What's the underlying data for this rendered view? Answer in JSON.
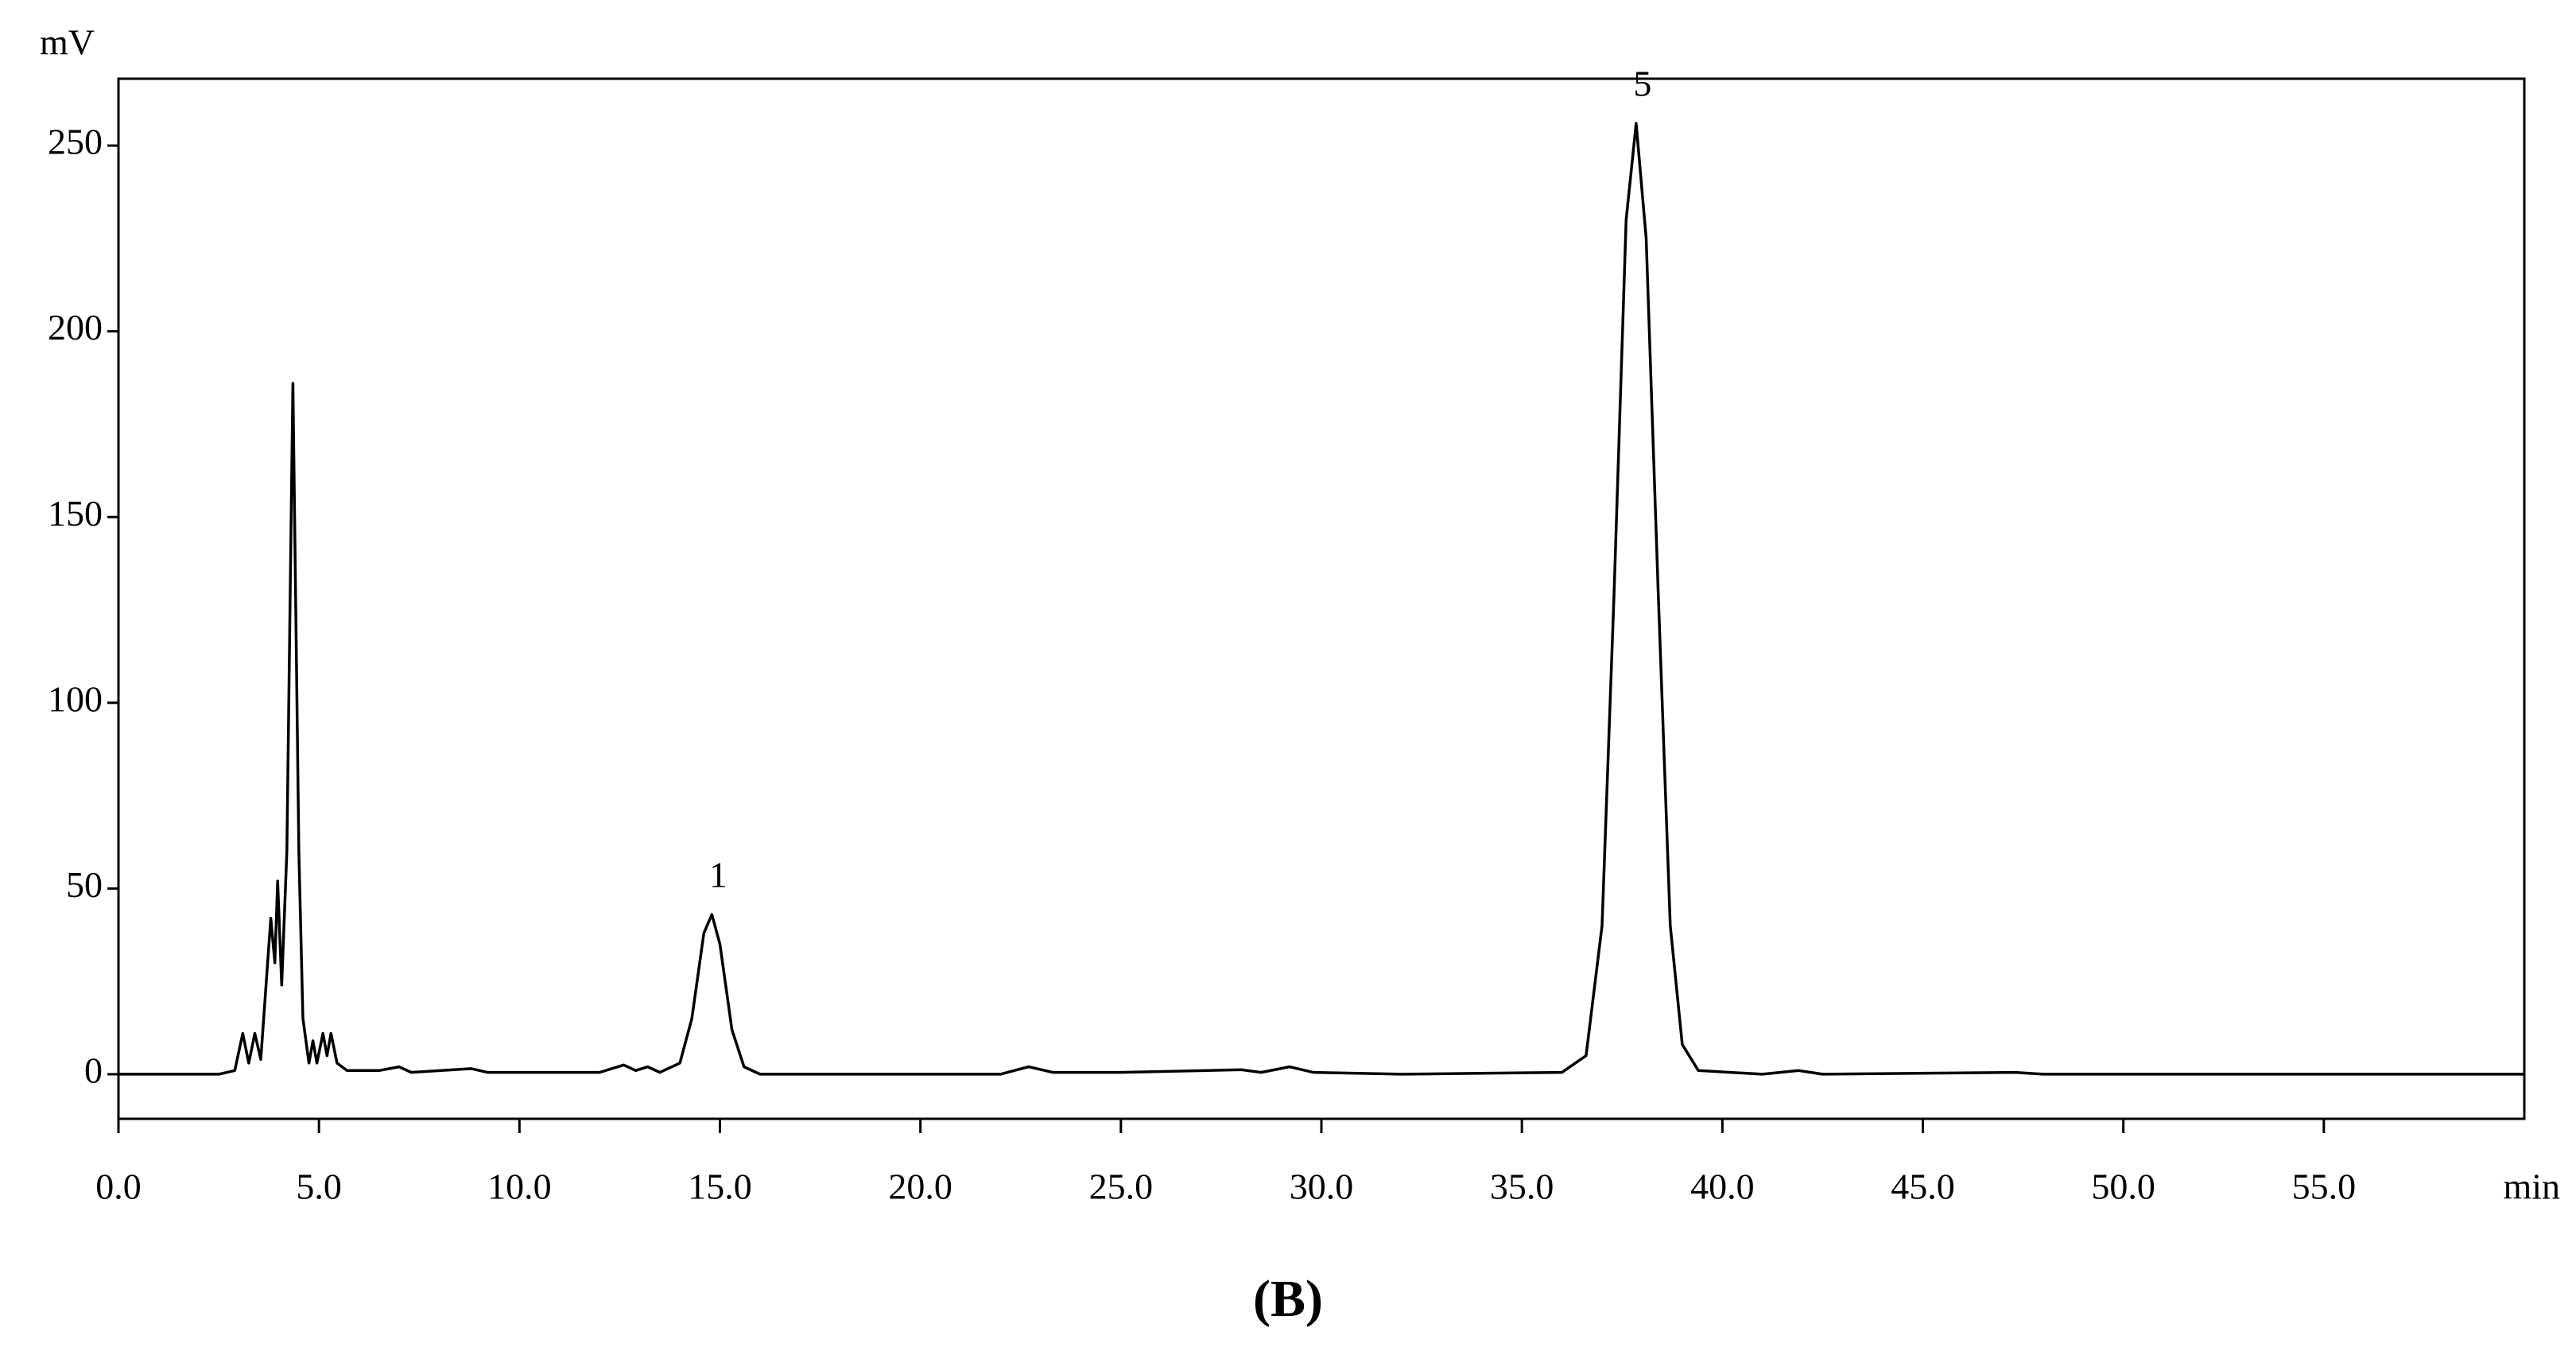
{
  "chart_data": {
    "type": "line",
    "caption": "(B)",
    "y_label": "mV",
    "x_label": "min",
    "x": [
      0,
      2.5,
      2.9,
      3.1,
      3.25,
      3.4,
      3.55,
      3.8,
      3.9,
      3.97,
      4.07,
      4.2,
      4.35,
      4.5,
      4.6,
      4.75,
      4.85,
      4.95,
      5.1,
      5.2,
      5.3,
      5.45,
      5.7,
      6.5,
      7.0,
      7.3,
      8.8,
      9.2,
      12.0,
      12.6,
      12.9,
      13.2,
      13.5,
      14.0,
      14.3,
      14.6,
      14.8,
      15.0,
      15.3,
      15.6,
      16.0,
      22.0,
      22.7,
      23.3,
      25.0,
      28.0,
      28.5,
      29.2,
      29.8,
      32.0,
      36.0,
      36.6,
      37.0,
      37.3,
      37.6,
      37.85,
      38.1,
      38.4,
      38.7,
      39.0,
      39.4,
      41.0,
      41.9,
      42.5,
      47.3,
      48.0,
      60.0
    ],
    "series": [
      {
        "color": "#000000",
        "values": [
          0,
          0,
          1,
          11,
          3,
          11,
          4,
          42,
          30,
          52,
          24,
          60,
          186,
          60,
          15,
          3,
          9,
          3,
          11,
          5,
          11,
          3,
          1,
          1,
          2,
          0.5,
          1.5,
          0.5,
          0.5,
          2.5,
          1,
          2,
          0.5,
          3,
          15,
          38,
          43,
          35,
          12,
          2,
          0,
          0,
          2,
          0.5,
          0.5,
          1.2,
          0.5,
          2,
          0.5,
          0,
          0.5,
          5,
          40,
          130,
          230,
          256,
          225,
          130,
          40,
          8,
          1,
          0,
          1,
          0,
          0.5,
          0,
          0
        ]
      }
    ],
    "annotations": [
      {
        "text": "1",
        "x": 14.8,
        "y": 43
      },
      {
        "text": "5",
        "x": 37.85,
        "y": 256
      }
    ],
    "xlim": [
      0,
      60
    ],
    "ylim": [
      -12,
      268
    ],
    "xticks": [
      {
        "value": 0,
        "label": "0.0"
      },
      {
        "value": 5,
        "label": "5.0"
      },
      {
        "value": 10,
        "label": "10.0"
      },
      {
        "value": 15,
        "label": "15.0"
      },
      {
        "value": 20,
        "label": "20.0"
      },
      {
        "value": 25,
        "label": "25.0"
      },
      {
        "value": 30,
        "label": "30.0"
      },
      {
        "value": 35,
        "label": "35.0"
      },
      {
        "value": 40,
        "label": "40.0"
      },
      {
        "value": 45,
        "label": "45.0"
      },
      {
        "value": 50,
        "label": "50.0"
      },
      {
        "value": 55,
        "label": "55.0"
      }
    ],
    "yticks": [
      0,
      50,
      100,
      150,
      200,
      250
    ],
    "grid": false
  }
}
